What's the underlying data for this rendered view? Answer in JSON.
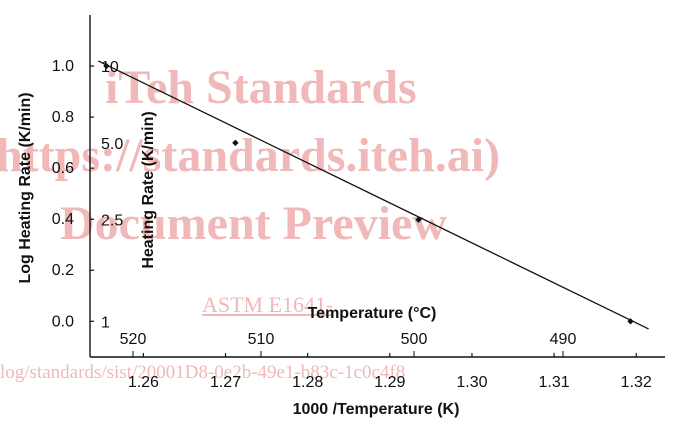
{
  "watermark": {
    "line1": "iTeh Standards",
    "line2": "https://standards.iteh.ai)",
    "line3": "Document Preview",
    "line4": "ASTM E1641-",
    "line5": "log/standards/sist/20001D8-0e2b-49e1-b83c-1c0c4f8"
  },
  "chart_data": {
    "type": "line",
    "xlabel": "1000 /Temperature (K)",
    "ylabel": "Log Heating Rate (K/min)",
    "xlim": [
      1.2535,
      1.3235
    ],
    "ylim": [
      -0.14,
      1.2
    ],
    "x_ticks": [
      1.26,
      1.27,
      1.28,
      1.29,
      1.3,
      1.31,
      1.32
    ],
    "x_tick_labels": [
      "1.26",
      "1.27",
      "1.28",
      "1.29",
      "1.30",
      "1.31",
      "1.32"
    ],
    "y_ticks": [
      0.0,
      0.2,
      0.4,
      0.6,
      0.8,
      1.0
    ],
    "y_tick_labels": [
      "0.0",
      "0.2",
      "0.4",
      "0.6",
      "0.8",
      "1.0"
    ],
    "secondary_x": {
      "label": "Temperature (°C)",
      "ticks": [
        520,
        510,
        500,
        490
      ]
    },
    "secondary_y": {
      "label": "Heating Rate (K/min)",
      "ticks": [
        {
          "label": "10",
          "log_value": 1.0
        },
        {
          "label": "5.0",
          "log_value": 0.699
        },
        {
          "label": "2.5",
          "log_value": 0.398
        },
        {
          "label": "1",
          "log_value": 0.0
        }
      ]
    },
    "points": [
      {
        "x": 1.2555,
        "y": 1.0
      },
      {
        "x": 1.2712,
        "y": 0.699
      },
      {
        "x": 1.2935,
        "y": 0.398
      },
      {
        "x": 1.3193,
        "y": 0.0
      }
    ],
    "fit_line": {
      "x": [
        1.2545,
        1.3215
      ],
      "y": [
        1.02,
        -0.03
      ]
    }
  }
}
